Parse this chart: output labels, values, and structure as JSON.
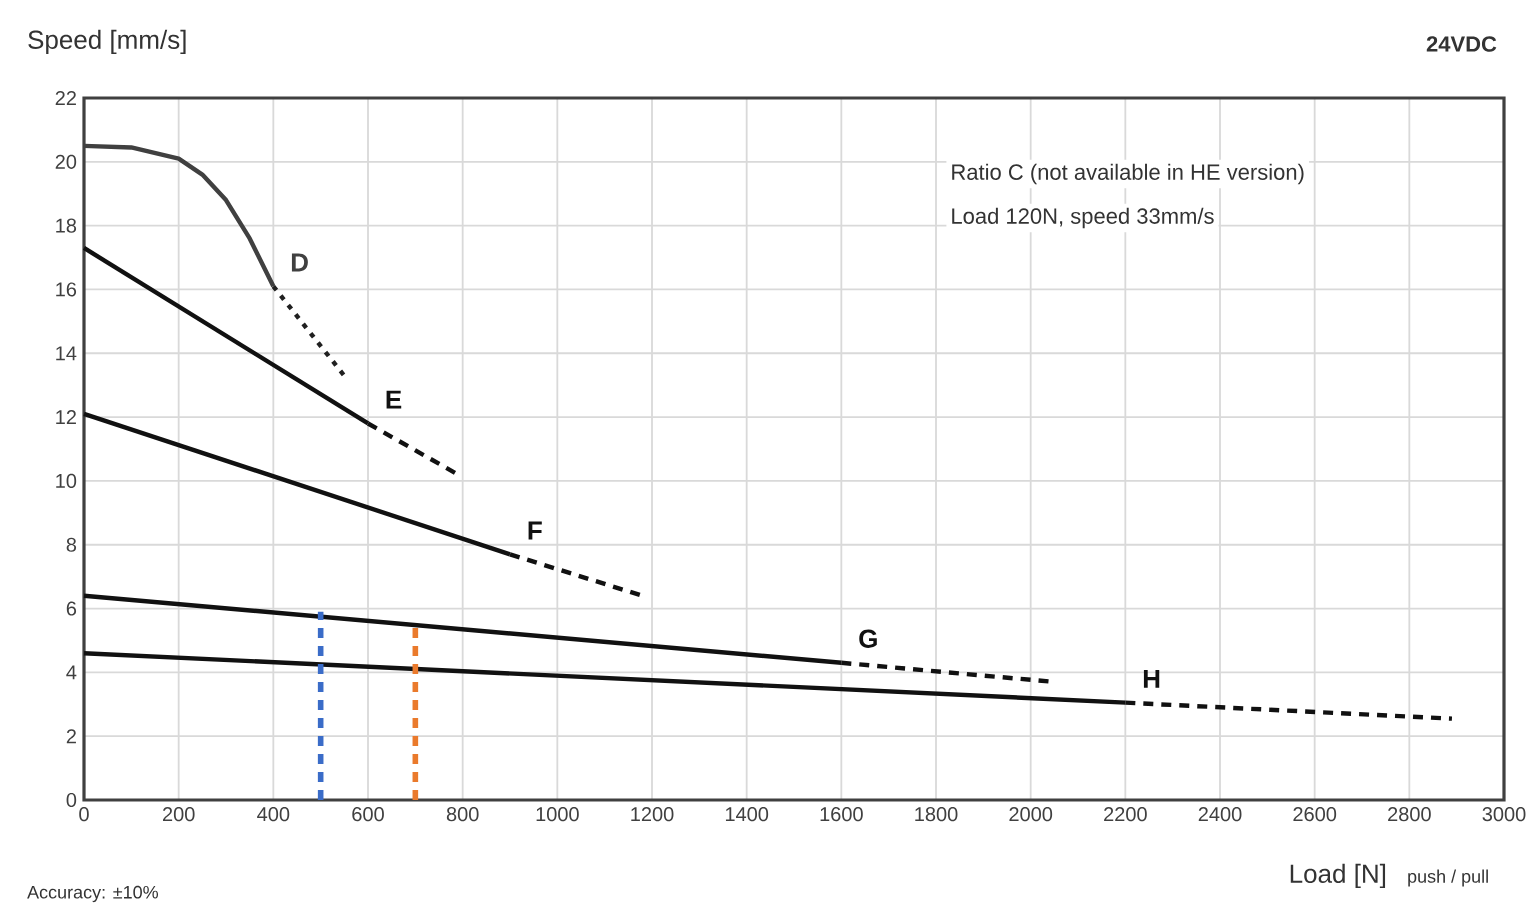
{
  "chart_data": {
    "type": "line",
    "xlabel": "Load [N]",
    "ylabel": "Speed [mm/s]",
    "annotations": [
      "24VDC",
      "Ratio C (not available in HE version)",
      "Load 120N, speed 33mm/s",
      "push / pull",
      "Accuracy: ±10%"
    ],
    "xlim": [
      0,
      3000
    ],
    "ylim": [
      0,
      22
    ],
    "xticks": [
      0,
      200,
      400,
      600,
      800,
      1000,
      1200,
      1400,
      1600,
      1800,
      2000,
      2200,
      2400,
      2600,
      2800,
      3000
    ],
    "yticks": [
      0,
      2,
      4,
      6,
      8,
      10,
      12,
      14,
      16,
      18,
      20,
      22
    ],
    "grid": true,
    "series": [
      {
        "name": "D",
        "color": "#404040",
        "line_style": "solid",
        "x": [
          0,
          100,
          200,
          250,
          300,
          350,
          400
        ],
        "values": [
          20.5,
          20.45,
          20.1,
          19.6,
          18.8,
          17.6,
          16.1
        ]
      },
      {
        "color": "#202020",
        "line_style": "dotted",
        "x": [
          400,
          555
        ],
        "values": [
          16.1,
          13.2
        ]
      },
      {
        "name": "E",
        "color": "#111111",
        "line_style": "solid",
        "x": [
          0,
          600
        ],
        "values": [
          17.3,
          11.8
        ]
      },
      {
        "color": "#111111",
        "line_style": "dashed",
        "x": [
          600,
          790
        ],
        "values": [
          11.8,
          10.2
        ]
      },
      {
        "name": "F",
        "color": "#111111",
        "line_style": "solid",
        "x": [
          0,
          900
        ],
        "values": [
          12.1,
          7.7
        ]
      },
      {
        "color": "#111111",
        "line_style": "dashed",
        "x": [
          900,
          1180
        ],
        "values": [
          7.7,
          6.4
        ]
      },
      {
        "name": "G",
        "color": "#111111",
        "line_style": "solid",
        "x": [
          0,
          1600
        ],
        "values": [
          6.4,
          4.3
        ]
      },
      {
        "color": "#111111",
        "line_style": "dashed",
        "x": [
          1600,
          2050
        ],
        "values": [
          4.3,
          3.7
        ]
      },
      {
        "name": "H",
        "color": "#111111",
        "line_style": "solid",
        "x": [
          0,
          2200
        ],
        "values": [
          4.6,
          3.05
        ]
      },
      {
        "color": "#111111",
        "line_style": "dashed",
        "x": [
          2200,
          2890
        ],
        "values": [
          3.05,
          2.55
        ]
      },
      {
        "color": "#3a6cc8",
        "line_style": "dashed",
        "x": [
          500,
          500
        ],
        "values": [
          0,
          5.9
        ]
      },
      {
        "color": "#ea7a2c",
        "line_style": "dashed",
        "x": [
          700,
          700
        ],
        "values": [
          0,
          5.6
        ]
      }
    ]
  }
}
